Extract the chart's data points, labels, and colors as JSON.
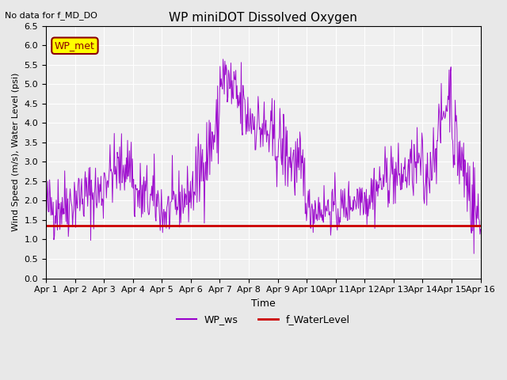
{
  "title": "WP miniDOT Dissolved Oxygen",
  "subtitle": "No data for f_MD_DO",
  "xlabel": "Time",
  "ylabel": "Wind Speed (m/s), Water Level (psi)",
  "ylim": [
    0.0,
    6.5
  ],
  "yticks": [
    0.0,
    0.5,
    1.0,
    1.5,
    2.0,
    2.5,
    3.0,
    3.5,
    4.0,
    4.5,
    5.0,
    5.5,
    6.0,
    6.5
  ],
  "xtick_labels": [
    "Apr 1",
    "Apr 2",
    "Apr 3",
    "Apr 4",
    "Apr 5",
    "Apr 6",
    "Apr 7",
    "Apr 8",
    "Apr 9",
    "Apr 10",
    "Apr 11",
    "Apr 12",
    "Apr 13",
    "Apr 14",
    "Apr 15",
    "Apr 16"
  ],
  "wp_met_label": "WP_met",
  "legend_ws": "WP_ws",
  "legend_wl": "f_WaterLevel",
  "ws_color": "#9900CC",
  "wl_color": "#CC0000",
  "bg_color": "#E8E8E8",
  "plot_bg": "#F0F0F0",
  "water_level_value": 1.35,
  "n_days": 15,
  "pts_per_day": 48,
  "segments": [
    [
      0,
      1,
      1.8,
      0.45,
      0.2
    ],
    [
      1,
      2,
      2.1,
      0.45,
      0.1
    ],
    [
      2,
      3,
      2.6,
      0.4,
      0.4
    ],
    [
      3,
      4,
      2.2,
      0.45,
      -0.3
    ],
    [
      4,
      5,
      1.6,
      0.35,
      0.6
    ],
    [
      5,
      6,
      2.2,
      0.5,
      1.8
    ],
    [
      6,
      7,
      5.3,
      0.55,
      -1.2
    ],
    [
      7,
      8,
      4.2,
      0.5,
      -0.8
    ],
    [
      8,
      9,
      3.5,
      0.5,
      -1.0
    ],
    [
      9,
      10,
      1.8,
      0.3,
      0.0
    ],
    [
      10,
      11,
      1.7,
      0.3,
      0.5
    ],
    [
      11,
      12,
      2.0,
      0.4,
      0.8
    ],
    [
      12,
      13,
      2.5,
      0.4,
      0.5
    ],
    [
      13,
      14,
      2.2,
      0.4,
      2.8
    ],
    [
      14,
      15,
      3.8,
      0.6,
      -2.5
    ]
  ]
}
